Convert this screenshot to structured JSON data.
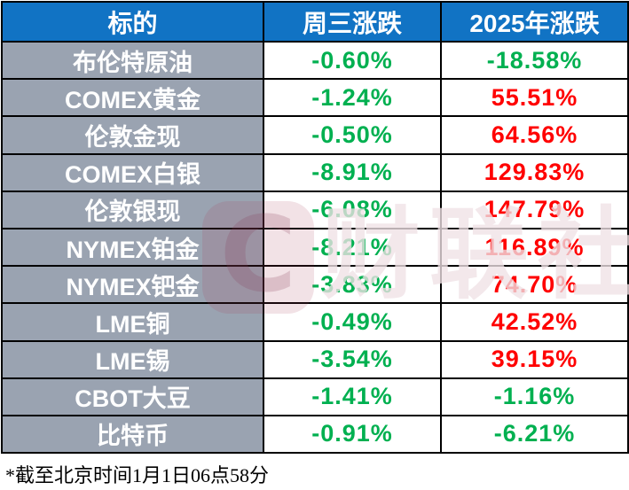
{
  "table": {
    "headers": [
      "标的",
      "周三涨跌",
      "2025年涨跌"
    ],
    "rows": [
      {
        "label": "布伦特原油",
        "wed": "-0.60%",
        "wed_dir": "down",
        "year": "-18.58%",
        "year_dir": "down"
      },
      {
        "label": "COMEX黄金",
        "wed": "-1.24%",
        "wed_dir": "down",
        "year": "55.51%",
        "year_dir": "up"
      },
      {
        "label": "伦敦金现",
        "wed": "-0.50%",
        "wed_dir": "down",
        "year": "64.56%",
        "year_dir": "up"
      },
      {
        "label": "COMEX白银",
        "wed": "-8.91%",
        "wed_dir": "down",
        "year": "129.83%",
        "year_dir": "up"
      },
      {
        "label": "伦敦银现",
        "wed": "-6.08%",
        "wed_dir": "down",
        "year": "147.79%",
        "year_dir": "up"
      },
      {
        "label": "NYMEX铂金",
        "wed": "-8.21%",
        "wed_dir": "down",
        "year": "116.89%",
        "year_dir": "up"
      },
      {
        "label": "NYMEX钯金",
        "wed": "-3.83%",
        "wed_dir": "down",
        "year": "74.70%",
        "year_dir": "up"
      },
      {
        "label": "LME铜",
        "wed": "-0.49%",
        "wed_dir": "down",
        "year": "42.52%",
        "year_dir": "up"
      },
      {
        "label": "LME锡",
        "wed": "-3.54%",
        "wed_dir": "down",
        "year": "39.15%",
        "year_dir": "up"
      },
      {
        "label": "CBOT大豆",
        "wed": "-1.41%",
        "wed_dir": "down",
        "year": "-1.16%",
        "year_dir": "down"
      },
      {
        "label": "比特币",
        "wed": "-0.91%",
        "wed_dir": "down",
        "year": "-6.21%",
        "year_dir": "down"
      }
    ]
  },
  "footer": {
    "note": "*截至北京时间1月1日06点58分"
  },
  "watermark": {
    "letter": "C",
    "text": "财联社"
  },
  "colors": {
    "up": "#FF0000",
    "down": "#00B050",
    "header_bg": "#1173C4",
    "row_label_bg": "#9AA3B1",
    "header_text": "#FFFFFF",
    "label_text": "#FFFFFF",
    "border": "#000000"
  }
}
